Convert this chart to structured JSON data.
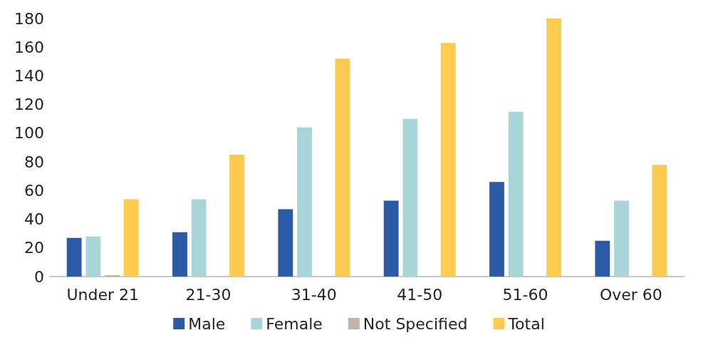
{
  "chart_data": {
    "type": "bar",
    "categories": [
      "Under 21",
      "21-30",
      "31-40",
      "41-50",
      "51-60",
      "Over 60"
    ],
    "series": [
      {
        "name": "Male",
        "color": "#2c5aa6",
        "values": [
          27,
          31,
          47,
          53,
          66,
          25
        ]
      },
      {
        "name": "Female",
        "color": "#a8d5d8",
        "values": [
          28,
          54,
          104,
          110,
          115,
          53
        ]
      },
      {
        "name": "Not Specified",
        "color": "#c2b4a8",
        "values": [
          1,
          0,
          0,
          0,
          0,
          0
        ]
      },
      {
        "name": "Total",
        "color": "#fccb4f",
        "values": [
          54,
          85,
          152,
          163,
          180,
          78
        ]
      }
    ],
    "ylim": [
      0,
      180
    ],
    "yticks": [
      0,
      20,
      40,
      60,
      80,
      100,
      120,
      140,
      160,
      180
    ],
    "grid": false,
    "legend": "bottom"
  }
}
